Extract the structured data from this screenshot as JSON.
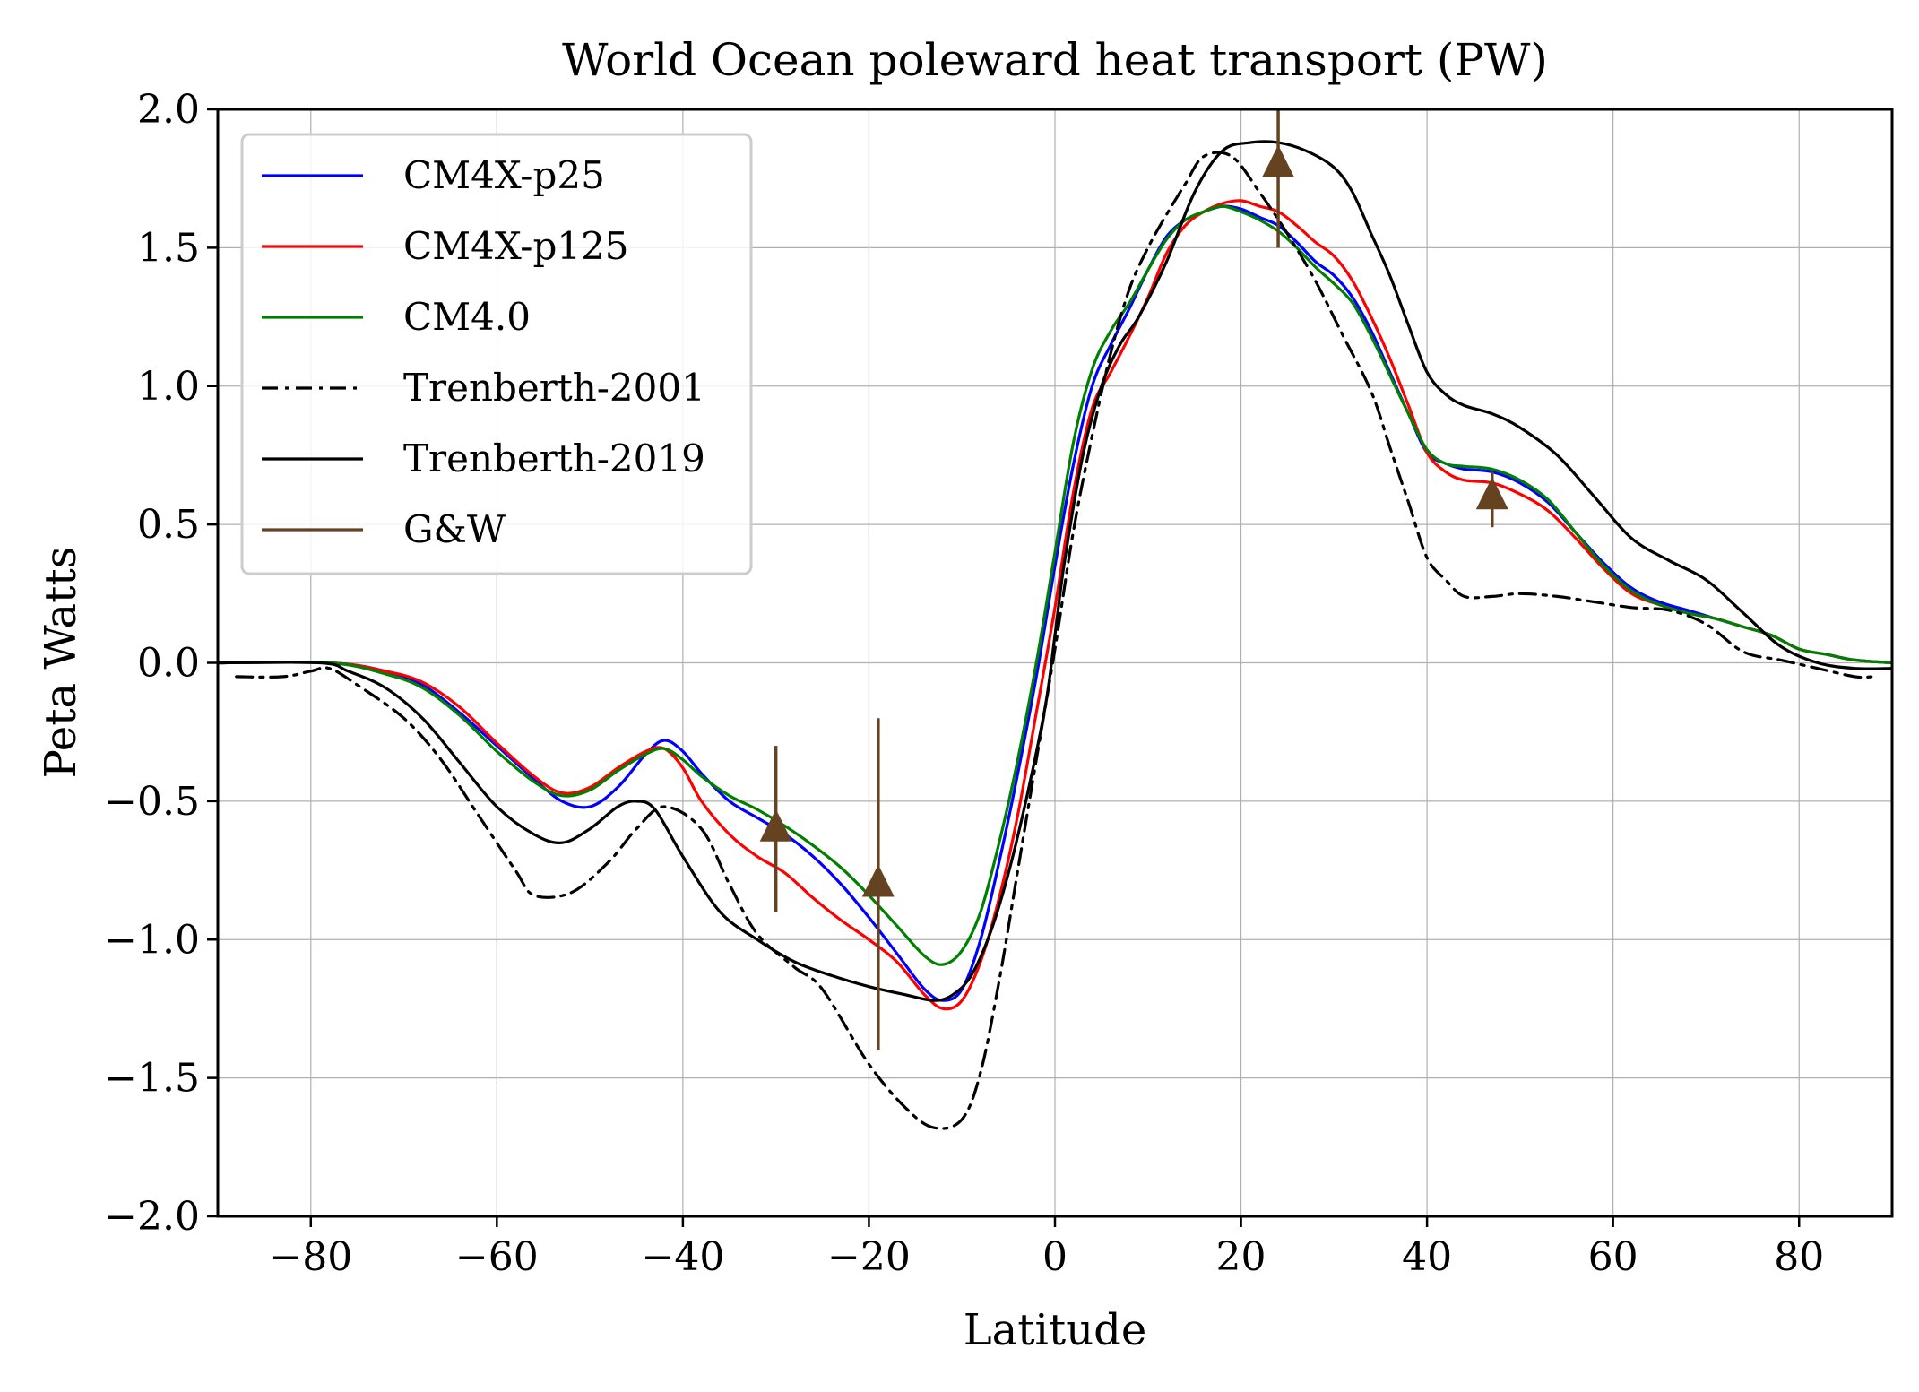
{
  "chart_data": {
    "type": "line",
    "title": "World Ocean poleward heat transport (PW)",
    "xlabel": "Latitude",
    "ylabel": "Peta Watts",
    "xlim": [
      -90,
      90
    ],
    "ylim": [
      -2.0,
      2.0
    ],
    "xticks": [
      -80,
      -60,
      -40,
      -20,
      0,
      20,
      40,
      60,
      80
    ],
    "xtick_labels": [
      "−80",
      "−60",
      "−40",
      "−20",
      "0",
      "20",
      "40",
      "60",
      "80"
    ],
    "yticks": [
      -2.0,
      -1.5,
      -1.0,
      -0.5,
      0.0,
      0.5,
      1.0,
      1.5,
      2.0
    ],
    "ytick_labels": [
      "−2.0",
      "−1.5",
      "−1.0",
      "−0.5",
      "0.0",
      "0.5",
      "1.0",
      "1.5",
      "2.0"
    ],
    "grid": true,
    "legend_position": "upper-left",
    "series": [
      {
        "name": "CM4X-p25",
        "color": "#0000ff",
        "style": "solid",
        "x": [
          -90,
          -78,
          -72,
          -68,
          -64,
          -60,
          -56,
          -53,
          -50,
          -47,
          -44,
          -42,
          -40,
          -38,
          -35,
          -32,
          -29,
          -26,
          -23,
          -20,
          -17,
          -14,
          -12,
          -10,
          -8,
          -6,
          -4,
          -2,
          0,
          2,
          4,
          6,
          8,
          10,
          12,
          14,
          16,
          18,
          20,
          22,
          24,
          26,
          28,
          30,
          32,
          34,
          36,
          38,
          40,
          42,
          44,
          47,
          50,
          53,
          56,
          59,
          62,
          65,
          68,
          71,
          74,
          77,
          80,
          83,
          86,
          90
        ],
        "y": [
          0,
          0,
          -0.03,
          -0.08,
          -0.18,
          -0.3,
          -0.42,
          -0.5,
          -0.52,
          -0.45,
          -0.33,
          -0.28,
          -0.32,
          -0.4,
          -0.5,
          -0.56,
          -0.62,
          -0.7,
          -0.8,
          -0.92,
          -1.05,
          -1.18,
          -1.22,
          -1.18,
          -1.0,
          -0.72,
          -0.4,
          -0.05,
          0.35,
          0.72,
          1.0,
          1.15,
          1.28,
          1.42,
          1.54,
          1.6,
          1.63,
          1.65,
          1.64,
          1.61,
          1.58,
          1.52,
          1.45,
          1.4,
          1.32,
          1.2,
          1.05,
          0.9,
          0.76,
          0.72,
          0.7,
          0.69,
          0.65,
          0.58,
          0.47,
          0.36,
          0.27,
          0.22,
          0.19,
          0.16,
          0.13,
          0.1,
          0.05,
          0.03,
          0.01,
          0
        ]
      },
      {
        "name": "CM4X-p125",
        "color": "#ff0000",
        "style": "solid",
        "x": [
          -90,
          -78,
          -72,
          -68,
          -64,
          -60,
          -56,
          -53,
          -50,
          -47,
          -44,
          -42,
          -40,
          -38,
          -35,
          -32,
          -29,
          -26,
          -23,
          -20,
          -17,
          -14,
          -12,
          -10,
          -8,
          -6,
          -4,
          -2,
          0,
          2,
          4,
          6,
          8,
          10,
          12,
          14,
          16,
          18,
          20,
          22,
          24,
          26,
          28,
          30,
          32,
          34,
          36,
          38,
          40,
          42,
          44,
          47,
          50,
          53,
          56,
          59,
          62,
          65,
          68,
          71,
          74,
          77,
          80,
          83,
          86,
          90
        ],
        "y": [
          0,
          0,
          -0.03,
          -0.07,
          -0.16,
          -0.29,
          -0.41,
          -0.47,
          -0.45,
          -0.38,
          -0.32,
          -0.31,
          -0.38,
          -0.5,
          -0.62,
          -0.7,
          -0.76,
          -0.85,
          -0.93,
          -1.0,
          -1.08,
          -1.2,
          -1.25,
          -1.22,
          -1.08,
          -0.85,
          -0.55,
          -0.18,
          0.2,
          0.62,
          0.92,
          1.05,
          1.18,
          1.32,
          1.48,
          1.58,
          1.63,
          1.66,
          1.67,
          1.65,
          1.63,
          1.58,
          1.52,
          1.47,
          1.38,
          1.25,
          1.1,
          0.93,
          0.76,
          0.69,
          0.66,
          0.65,
          0.61,
          0.55,
          0.45,
          0.34,
          0.25,
          0.21,
          0.18,
          0.16,
          0.13,
          0.1,
          0.05,
          0.03,
          0.01,
          0
        ]
      },
      {
        "name": "CM4.0",
        "color": "#008000",
        "style": "solid",
        "x": [
          -90,
          -78,
          -72,
          -68,
          -64,
          -60,
          -56,
          -53,
          -50,
          -47,
          -44,
          -42,
          -40,
          -38,
          -35,
          -32,
          -29,
          -26,
          -23,
          -20,
          -17,
          -14,
          -12,
          -10,
          -8,
          -6,
          -4,
          -2,
          0,
          2,
          4,
          6,
          8,
          10,
          12,
          14,
          16,
          18,
          20,
          22,
          24,
          26,
          28,
          30,
          32,
          34,
          36,
          38,
          40,
          42,
          44,
          47,
          50,
          53,
          56,
          59,
          62,
          65,
          68,
          71,
          74,
          77,
          80,
          83,
          86,
          90
        ],
        "y": [
          0,
          0,
          -0.04,
          -0.09,
          -0.19,
          -0.32,
          -0.43,
          -0.48,
          -0.46,
          -0.39,
          -0.33,
          -0.31,
          -0.35,
          -0.41,
          -0.48,
          -0.53,
          -0.59,
          -0.66,
          -0.74,
          -0.84,
          -0.95,
          -1.06,
          -1.09,
          -1.04,
          -0.9,
          -0.65,
          -0.35,
          0.0,
          0.4,
          0.8,
          1.06,
          1.2,
          1.3,
          1.42,
          1.53,
          1.6,
          1.63,
          1.65,
          1.63,
          1.6,
          1.56,
          1.5,
          1.43,
          1.37,
          1.3,
          1.18,
          1.04,
          0.9,
          0.77,
          0.72,
          0.71,
          0.7,
          0.66,
          0.59,
          0.47,
          0.35,
          0.26,
          0.21,
          0.18,
          0.16,
          0.13,
          0.1,
          0.05,
          0.03,
          0.01,
          0
        ]
      },
      {
        "name": "Trenberth-2001",
        "color": "#000000",
        "style": "dashdot",
        "x": [
          -88,
          -83,
          -80,
          -78,
          -75,
          -70,
          -66,
          -62,
          -58,
          -56,
          -52,
          -48,
          -45,
          -42,
          -38,
          -35,
          -32,
          -28,
          -25,
          -20,
          -16,
          -13,
          -10,
          -8,
          -6,
          -4,
          -2,
          0,
          2,
          4,
          6,
          8,
          10,
          12,
          14,
          16,
          19,
          22,
          25,
          28,
          31,
          34,
          36,
          38,
          40,
          42,
          44,
          47,
          50,
          54,
          58,
          62,
          66,
          70,
          74,
          78,
          82,
          86,
          88
        ],
        "y": [
          -0.05,
          -0.05,
          -0.03,
          -0.02,
          -0.08,
          -0.2,
          -0.35,
          -0.55,
          -0.75,
          -0.84,
          -0.83,
          -0.72,
          -0.6,
          -0.52,
          -0.6,
          -0.8,
          -0.98,
          -1.1,
          -1.18,
          -1.45,
          -1.61,
          -1.68,
          -1.65,
          -1.48,
          -1.15,
          -0.75,
          -0.35,
          0.05,
          0.48,
          0.82,
          1.12,
          1.35,
          1.5,
          1.62,
          1.73,
          1.83,
          1.83,
          1.7,
          1.55,
          1.38,
          1.18,
          0.98,
          0.78,
          0.58,
          0.38,
          0.3,
          0.24,
          0.24,
          0.25,
          0.24,
          0.22,
          0.2,
          0.19,
          0.14,
          0.04,
          0.01,
          -0.02,
          -0.05,
          -0.05
        ]
      },
      {
        "name": "Trenberth-2019",
        "color": "#000000",
        "style": "solid",
        "x": [
          -90,
          -79,
          -76,
          -72,
          -68,
          -64,
          -60,
          -56,
          -53,
          -50,
          -47,
          -45,
          -43,
          -40,
          -36,
          -32,
          -28,
          -24,
          -20,
          -16,
          -13,
          -11,
          -9,
          -7,
          -5,
          -3,
          -1,
          0,
          1,
          3,
          5,
          7,
          9,
          12,
          15,
          18,
          21,
          24,
          27,
          30,
          32,
          34,
          36,
          38,
          40,
          42,
          44,
          47,
          50,
          54,
          58,
          62,
          66,
          70,
          74,
          78,
          82,
          86,
          90
        ],
        "y": [
          0,
          0,
          -0.03,
          -0.09,
          -0.2,
          -0.36,
          -0.52,
          -0.62,
          -0.65,
          -0.6,
          -0.52,
          -0.5,
          -0.53,
          -0.7,
          -0.9,
          -1.0,
          -1.08,
          -1.13,
          -1.17,
          -1.2,
          -1.22,
          -1.2,
          -1.13,
          -0.98,
          -0.76,
          -0.48,
          -0.15,
          0.1,
          0.36,
          0.75,
          1.0,
          1.15,
          1.25,
          1.45,
          1.7,
          1.85,
          1.88,
          1.88,
          1.85,
          1.79,
          1.7,
          1.55,
          1.4,
          1.22,
          1.05,
          0.97,
          0.93,
          0.9,
          0.85,
          0.75,
          0.6,
          0.45,
          0.37,
          0.3,
          0.18,
          0.06,
          0.0,
          -0.02,
          -0.02
        ]
      },
      {
        "name": "G&W",
        "color": "#654321",
        "style": "errorbar",
        "x": [
          -30,
          -19,
          24,
          47
        ],
        "y": [
          -0.6,
          -0.8,
          1.8,
          0.6
        ],
        "err_low": [
          -0.9,
          -1.4,
          1.5,
          0.49
        ],
        "err_high": [
          -0.3,
          -0.2,
          2.0,
          0.69
        ]
      }
    ]
  }
}
